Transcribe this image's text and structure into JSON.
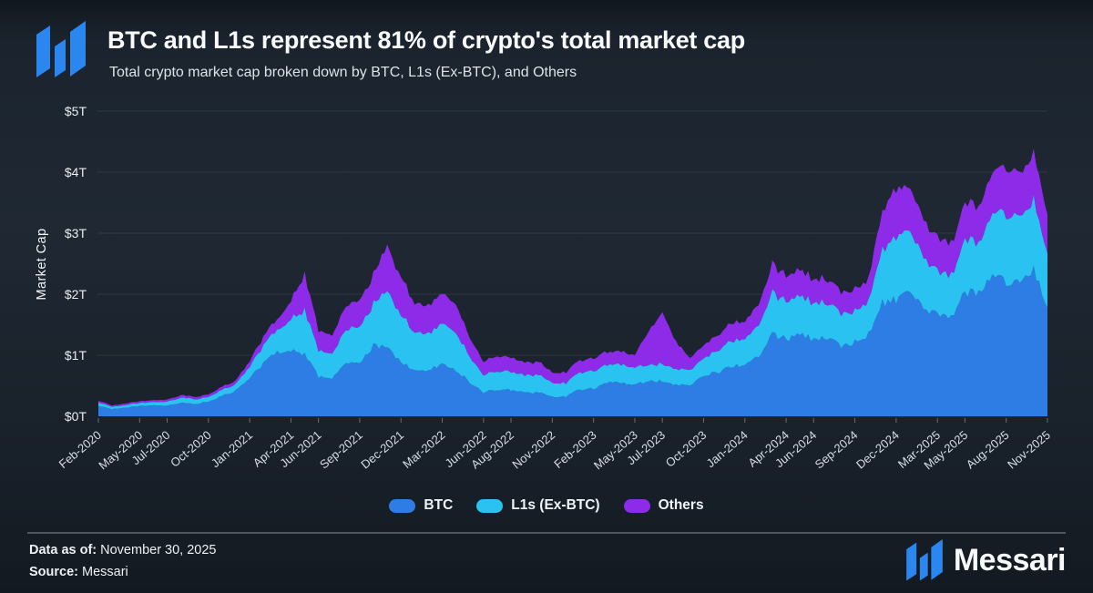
{
  "header": {
    "title": "BTC and L1s represent 81% of crypto's total market cap",
    "subtitle": "Total crypto market cap broken down by BTC, L1s (Ex-BTC), and Others"
  },
  "chart_data": {
    "type": "area",
    "stacked": true,
    "unit": "USD trillions",
    "title": "BTC and L1s represent 81% of crypto's total market cap",
    "xlabel": "",
    "ylabel": "Market Cap",
    "ylim": [
      0,
      5
    ],
    "y_tick_labels": [
      "$0T",
      "$1T",
      "$2T",
      "$3T",
      "$4T",
      "$5T"
    ],
    "grid": "horizontal",
    "legend_position": "bottom",
    "x": [
      "Feb-2020",
      "Mar-2020",
      "Apr-2020",
      "May-2020",
      "Jun-2020",
      "Jul-2020",
      "Aug-2020",
      "Sep-2020",
      "Oct-2020",
      "Nov-2020",
      "Dec-2020",
      "Jan-2021",
      "Feb-2021",
      "Mar-2021",
      "Apr-2021",
      "May-2021",
      "Jun-2021",
      "Jul-2021",
      "Aug-2021",
      "Sep-2021",
      "Oct-2021",
      "Nov-2021",
      "Dec-2021",
      "Jan-2022",
      "Feb-2022",
      "Mar-2022",
      "Apr-2022",
      "May-2022",
      "Jun-2022",
      "Jul-2022",
      "Aug-2022",
      "Sep-2022",
      "Oct-2022",
      "Nov-2022",
      "Dec-2022",
      "Jan-2023",
      "Feb-2023",
      "Mar-2023",
      "Apr-2023",
      "May-2023",
      "Jun-2023",
      "Jul-2023",
      "Aug-2023",
      "Sep-2023",
      "Oct-2023",
      "Nov-2023",
      "Dec-2023",
      "Jan-2024",
      "Feb-2024",
      "Mar-2024",
      "Apr-2024",
      "May-2024",
      "Jun-2024",
      "Jul-2024",
      "Aug-2024",
      "Sep-2024",
      "Oct-2024",
      "Nov-2024",
      "Dec-2024",
      "Jan-2025",
      "Feb-2025",
      "Mar-2025",
      "Apr-2025",
      "May-2025",
      "Jun-2025",
      "Jul-2025",
      "Aug-2025",
      "Sep-2025",
      "Oct-2025",
      "Nov-2025"
    ],
    "x_tick_labels": [
      "Feb-2020",
      "May-2020",
      "Jul-2020",
      "Oct-2020",
      "Jan-2021",
      "Apr-2021",
      "Jun-2021",
      "Sep-2021",
      "Dec-2021",
      "Mar-2022",
      "Jun-2022",
      "Aug-2022",
      "Nov-2022",
      "Feb-2023",
      "May-2023",
      "Jul-2023",
      "Oct-2023",
      "Jan-2024",
      "Apr-2024",
      "Jun-2024",
      "Sep-2024",
      "Dec-2024",
      "Mar-2025",
      "May-2025",
      "Aug-2025",
      "Nov-2025"
    ],
    "x_tick_month_index": [
      0,
      3,
      5,
      8,
      11,
      14,
      16,
      19,
      22,
      25,
      28,
      30,
      33,
      36,
      39,
      41,
      44,
      47,
      50,
      52,
      55,
      58,
      61,
      63,
      66,
      69
    ],
    "series": [
      {
        "name": "BTC",
        "color": "#2e7de5",
        "values": [
          0.17,
          0.12,
          0.14,
          0.17,
          0.175,
          0.17,
          0.22,
          0.2,
          0.24,
          0.33,
          0.42,
          0.62,
          0.87,
          1.05,
          1.1,
          1.02,
          0.65,
          0.63,
          0.88,
          0.85,
          1.15,
          1.12,
          0.9,
          0.73,
          0.76,
          0.85,
          0.76,
          0.56,
          0.39,
          0.44,
          0.43,
          0.38,
          0.39,
          0.32,
          0.32,
          0.44,
          0.46,
          0.54,
          0.56,
          0.52,
          0.57,
          0.58,
          0.52,
          0.52,
          0.66,
          0.72,
          0.82,
          0.83,
          1.0,
          1.35,
          1.27,
          1.32,
          1.27,
          1.3,
          1.16,
          1.21,
          1.36,
          1.85,
          1.92,
          1.98,
          1.75,
          1.66,
          1.62,
          2.02,
          2.06,
          2.26,
          2.22,
          2.22,
          2.42,
          1.78
        ]
      },
      {
        "name": "L1s (Ex-BTC)",
        "color": "#29c2f1",
        "values": [
          0.055,
          0.04,
          0.045,
          0.05,
          0.055,
          0.065,
          0.085,
          0.08,
          0.08,
          0.1,
          0.11,
          0.19,
          0.3,
          0.36,
          0.52,
          0.72,
          0.42,
          0.4,
          0.55,
          0.6,
          0.68,
          0.92,
          0.78,
          0.62,
          0.6,
          0.66,
          0.61,
          0.42,
          0.28,
          0.31,
          0.31,
          0.28,
          0.29,
          0.23,
          0.22,
          0.28,
          0.29,
          0.29,
          0.3,
          0.28,
          0.27,
          0.28,
          0.26,
          0.25,
          0.29,
          0.35,
          0.42,
          0.42,
          0.5,
          0.68,
          0.62,
          0.64,
          0.6,
          0.57,
          0.52,
          0.52,
          0.56,
          0.88,
          1.06,
          0.98,
          0.82,
          0.72,
          0.68,
          0.86,
          0.8,
          1.0,
          1.1,
          1.06,
          1.14,
          0.86
        ]
      },
      {
        "name": "Others",
        "color": "#8d2be9",
        "values": [
          0.03,
          0.022,
          0.025,
          0.028,
          0.03,
          0.032,
          0.04,
          0.038,
          0.04,
          0.05,
          0.055,
          0.09,
          0.14,
          0.17,
          0.3,
          0.58,
          0.33,
          0.3,
          0.4,
          0.43,
          0.47,
          0.74,
          0.62,
          0.48,
          0.46,
          0.5,
          0.46,
          0.31,
          0.22,
          0.24,
          0.23,
          0.21,
          0.21,
          0.17,
          0.17,
          0.2,
          0.21,
          0.21,
          0.22,
          0.2,
          0.55,
          0.85,
          0.45,
          0.2,
          0.21,
          0.25,
          0.29,
          0.29,
          0.34,
          0.45,
          0.42,
          0.42,
          0.4,
          0.38,
          0.35,
          0.35,
          0.37,
          0.62,
          0.78,
          0.7,
          0.6,
          0.55,
          0.52,
          0.6,
          0.56,
          0.68,
          0.76,
          0.7,
          0.78,
          0.64
        ]
      }
    ]
  },
  "footer": {
    "data_as_of_label": "Data as of:",
    "data_as_of_value": "November 30, 2025",
    "source_label": "Source:",
    "source_value": "Messari",
    "brand": "Messari"
  },
  "colors": {
    "background": "#1b242e",
    "btc": "#2e7de5",
    "l1s": "#29c2f1",
    "others": "#8d2be9",
    "logo_blue": "#2b87f0",
    "gridline": "rgba(255,255,255,0.08)"
  }
}
